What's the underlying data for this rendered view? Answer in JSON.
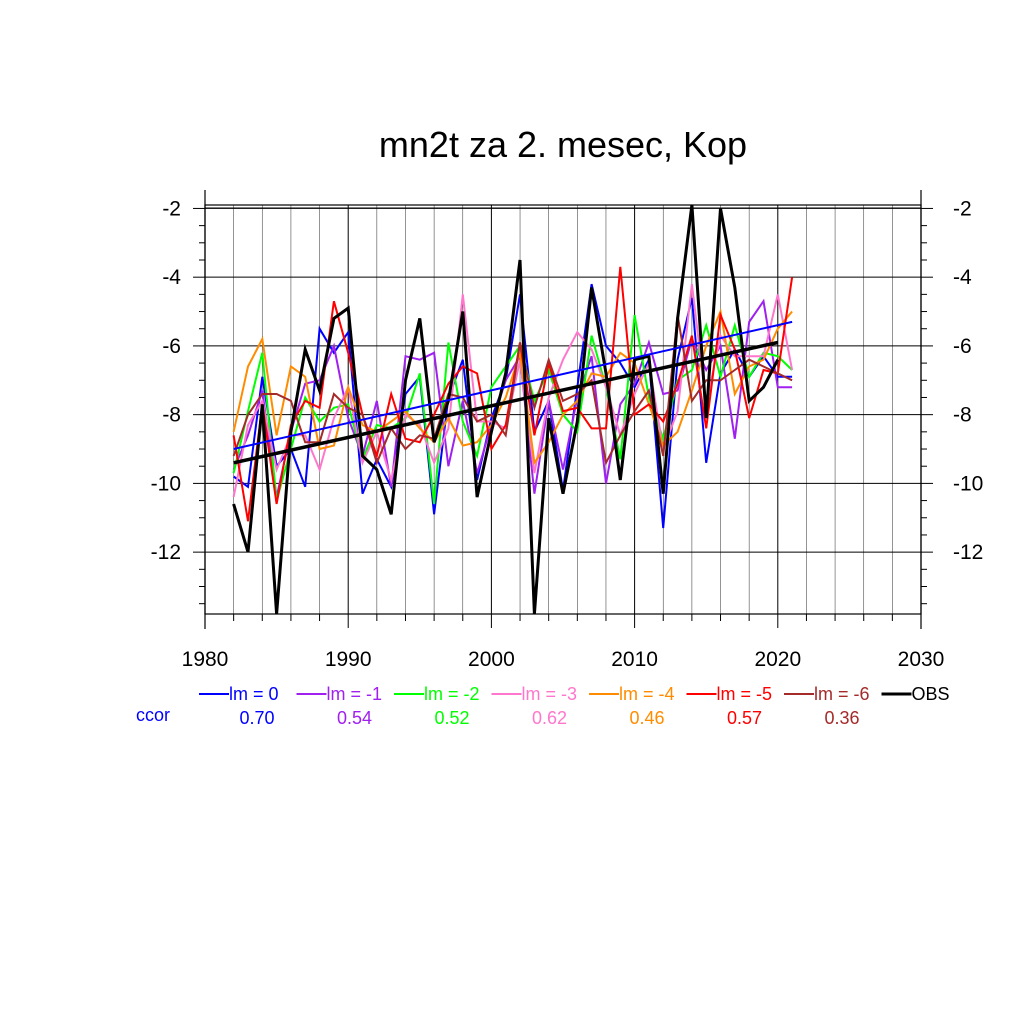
{
  "chart_data": {
    "type": "line",
    "title": "mn2t za 2. mesec, Kop",
    "xlabel": "",
    "ylabel": "",
    "xlim": [
      1980,
      2030
    ],
    "ylim": [
      -13.8,
      -1.9
    ],
    "x_ticks": [
      1980,
      1990,
      2000,
      2010,
      2020,
      2030
    ],
    "x_tick_labels": [
      "1980",
      "1990",
      "2000",
      "2010",
      "2020",
      "2030"
    ],
    "y_ticks": [
      -2,
      -4,
      -6,
      -8,
      -10,
      -12
    ],
    "y_tick_labels": [
      "-2",
      "-4",
      "-6",
      "-8",
      "-10",
      "-12"
    ],
    "grid": true,
    "legend_position": "bottom",
    "ccor_label": "ccor",
    "x": [
      1982,
      1983,
      1984,
      1985,
      1986,
      1987,
      1988,
      1989,
      1990,
      1991,
      1992,
      1993,
      1994,
      1995,
      1996,
      1997,
      1998,
      1999,
      2000,
      2001,
      2002,
      2003,
      2004,
      2005,
      2006,
      2007,
      2008,
      2009,
      2010,
      2011,
      2012,
      2013,
      2014,
      2015,
      2016,
      2017,
      2018,
      2019,
      2020,
      2021
    ],
    "series": [
      {
        "name": "lm = 0",
        "ccor": "0.70",
        "color": "#0000ff",
        "values": [
          -9.8,
          -10.1,
          -6.9,
          -9.5,
          -9.0,
          -10.1,
          -5.5,
          -6.2,
          -5.6,
          -10.3,
          -9.3,
          -10.1,
          -7.4,
          -6.9,
          -10.9,
          -7.5,
          -6.4,
          -9.9,
          -8.1,
          -7.0,
          -4.5,
          -8.5,
          -7.6,
          -10.2,
          -7.2,
          -4.2,
          -6.0,
          -6.5,
          -7.2,
          -6.4,
          -11.3,
          -6.4,
          -4.6,
          -9.4,
          -6.8,
          -6.1,
          -6.9,
          -6.3,
          -6.9,
          -6.9
        ],
        "trend": [
          -9.0,
          -5.3
        ]
      },
      {
        "name": "lm = -1",
        "ccor": "0.54",
        "color": "#a020f0",
        "values": [
          -9.6,
          -8.6,
          -7.3,
          -10.4,
          -8.5,
          -7.1,
          -7.0,
          -6.0,
          -8.1,
          -9.2,
          -7.6,
          -10.1,
          -6.3,
          -6.4,
          -6.2,
          -9.5,
          -7.6,
          -9.7,
          -8.3,
          -7.0,
          -6.3,
          -10.3,
          -7.6,
          -9.6,
          -7.5,
          -6.3,
          -10.0,
          -7.7,
          -7.1,
          -5.9,
          -7.4,
          -7.3,
          -5.8,
          -6.7,
          -6.0,
          -8.7,
          -5.3,
          -4.7,
          -7.2,
          -7.2
        ]
      },
      {
        "name": "lm = -2",
        "ccor": "0.52",
        "color": "#00ff00",
        "values": [
          -9.7,
          -7.9,
          -6.2,
          -10.5,
          -9.0,
          -7.5,
          -8.2,
          -7.8,
          -7.7,
          -9.3,
          -8.3,
          -8.4,
          -8.1,
          -6.8,
          -10.6,
          -5.9,
          -8.2,
          -9.2,
          -7.2,
          -6.6,
          -6.0,
          -7.6,
          -6.7,
          -8.0,
          -8.5,
          -5.7,
          -7.2,
          -9.3,
          -5.1,
          -7.5,
          -8.7,
          -7.0,
          -6.7,
          -5.4,
          -6.9,
          -5.4,
          -6.9,
          -6.2,
          -6.3,
          -6.7
        ]
      },
      {
        "name": "lm = -3",
        "ccor": "0.62",
        "color": "#ff77cc",
        "values": [
          -10.4,
          -8.3,
          -7.6,
          -9.6,
          -8.6,
          -8.6,
          -9.6,
          -8.1,
          -7.2,
          -9.4,
          -8.5,
          -9.9,
          -8.0,
          -8.3,
          -9.4,
          -8.4,
          -4.5,
          -8.2,
          -8.2,
          -8.4,
          -6.4,
          -9.7,
          -7.5,
          -6.4,
          -5.6,
          -6.1,
          -7.2,
          -8.6,
          -7.4,
          -6.5,
          -9.0,
          -7.9,
          -4.2,
          -7.7,
          -5.7,
          -6.3,
          -6.3,
          -6.3,
          -4.5,
          -6.7
        ]
      },
      {
        "name": "lm = -4",
        "ccor": "0.46",
        "color": "#ff8c00",
        "values": [
          -8.5,
          -6.6,
          -5.8,
          -8.6,
          -6.6,
          -6.9,
          -9.0,
          -8.9,
          -7.2,
          -8.3,
          -8.5,
          -8.2,
          -7.9,
          -8.4,
          -8.8,
          -8.1,
          -8.9,
          -8.8,
          -8.3,
          -7.5,
          -6.2,
          -9.4,
          -8.8,
          -8.0,
          -7.6,
          -6.8,
          -6.9,
          -6.2,
          -6.5,
          -7.7,
          -8.9,
          -8.5,
          -7.3,
          -6.0,
          -5.0,
          -7.4,
          -6.6,
          -6.4,
          -5.5,
          -5.0
        ]
      },
      {
        "name": "lm = -5",
        "ccor": "0.57",
        "color": "#ff0000",
        "values": [
          -8.6,
          -11.1,
          -7.7,
          -10.6,
          -8.3,
          -7.6,
          -7.8,
          -4.7,
          -6.2,
          -8.0,
          -9.2,
          -7.4,
          -8.7,
          -8.8,
          -8.0,
          -7.1,
          -6.6,
          -6.8,
          -9.0,
          -8.3,
          -5.9,
          -8.6,
          -6.5,
          -7.9,
          -7.8,
          -8.4,
          -8.4,
          -3.7,
          -8.0,
          -7.7,
          -8.2,
          -7.1,
          -5.7,
          -8.4,
          -5.1,
          -6.1,
          -8.1,
          -6.7,
          -6.8,
          -4.0
        ]
      },
      {
        "name": "lm = -6",
        "ccor": "0.36",
        "color": "#a52a2a",
        "values": [
          -9.2,
          -8.0,
          -7.4,
          -7.4,
          -7.6,
          -8.8,
          -8.8,
          -7.4,
          -7.8,
          -8.0,
          -9.4,
          -8.4,
          -9.0,
          -8.6,
          -8.7,
          -7.4,
          -7.5,
          -8.2,
          -8.0,
          -8.6,
          -5.9,
          -7.8,
          -6.4,
          -7.6,
          -7.4,
          -7.0,
          -9.4,
          -8.6,
          -7.9,
          -7.3,
          -9.2,
          -5.1,
          -7.6,
          -7.0,
          -7.0,
          -6.7,
          -6.4,
          -6.6,
          -6.8,
          -7.0
        ]
      },
      {
        "name": "OBS",
        "ccor": "",
        "color": "#000000",
        "values": [
          -10.6,
          -12.0,
          -7.7,
          -13.8,
          -8.5,
          -6.1,
          -7.3,
          -5.2,
          -4.9,
          -9.2,
          -9.6,
          -10.9,
          -7.0,
          -5.2,
          -8.8,
          -7.6,
          -5.0,
          -10.4,
          -8.5,
          -6.8,
          -3.5,
          -13.8,
          -8.1,
          -10.3,
          -8.2,
          -4.3,
          -6.8,
          -9.9,
          -6.4,
          -6.3,
          -10.3,
          -5.2,
          -1.9,
          -8.1,
          -2.0,
          -4.3,
          -7.6,
          -7.2,
          -6.4,
          null
        ],
        "trend": [
          -9.4,
          -5.9
        ]
      }
    ]
  }
}
